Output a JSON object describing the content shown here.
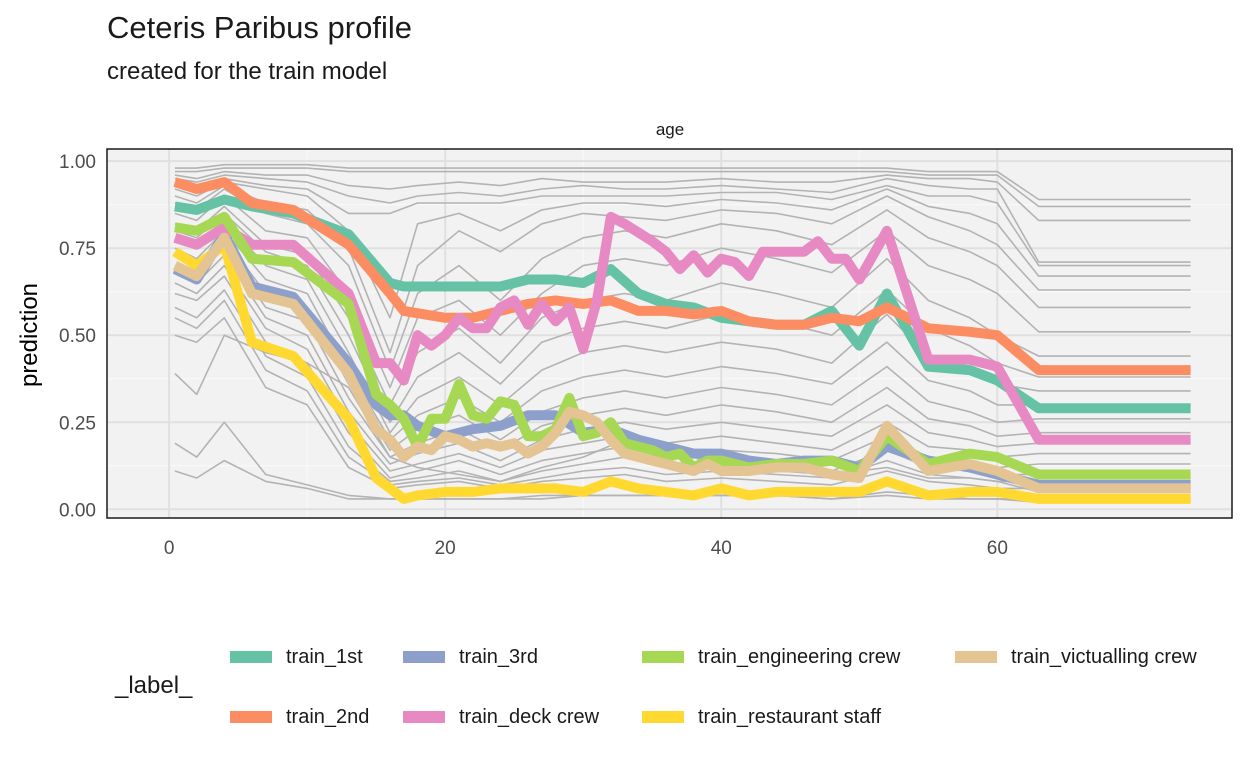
{
  "header": {
    "title": "Ceteris Paribus profile",
    "subtitle": "created for the train model"
  },
  "chart_data": {
    "type": "line",
    "title": "Ceteris Paribus profile",
    "subtitle": "created for the train model",
    "facet_label": "age",
    "xlabel": "",
    "ylabel": "prediction",
    "xlim": [
      -4.5,
      77
    ],
    "ylim": [
      -0.025,
      1.035
    ],
    "x_ticks": [
      0,
      20,
      40,
      60
    ],
    "y_ticks": [
      0.0,
      0.25,
      0.5,
      0.75,
      1.0
    ],
    "x_tick_labels": [
      "0",
      "20",
      "40",
      "60"
    ],
    "y_tick_labels": [
      "0.00",
      "0.25",
      "0.50",
      "0.75",
      "1.00"
    ],
    "grid": true,
    "legend_position": "bottom",
    "legend_title": "_label_",
    "series": [
      {
        "name": "train_1st",
        "color": "#66C2A5",
        "x": [
          0.42,
          2,
          4,
          6,
          9,
          13,
          16,
          17,
          20,
          22,
          24,
          26,
          28,
          30,
          32,
          34,
          36,
          38,
          40,
          42,
          44,
          46,
          48,
          50,
          52,
          55,
          58,
          60,
          63,
          74
        ],
        "y": [
          0.87,
          0.86,
          0.89,
          0.87,
          0.85,
          0.79,
          0.65,
          0.64,
          0.64,
          0.64,
          0.64,
          0.66,
          0.66,
          0.65,
          0.69,
          0.62,
          0.59,
          0.58,
          0.55,
          0.54,
          0.53,
          0.53,
          0.57,
          0.47,
          0.62,
          0.41,
          0.4,
          0.37,
          0.29,
          0.29
        ]
      },
      {
        "name": "train_2nd",
        "color": "#FC8D62",
        "x": [
          0.42,
          2,
          4,
          6,
          9,
          13,
          16,
          17,
          20,
          22,
          24,
          26,
          28,
          30,
          32,
          34,
          36,
          38,
          40,
          42,
          44,
          46,
          48,
          50,
          52,
          55,
          58,
          60,
          63,
          74
        ],
        "y": [
          0.94,
          0.92,
          0.94,
          0.88,
          0.86,
          0.76,
          0.62,
          0.57,
          0.55,
          0.55,
          0.57,
          0.59,
          0.6,
          0.59,
          0.6,
          0.57,
          0.57,
          0.56,
          0.57,
          0.54,
          0.53,
          0.53,
          0.55,
          0.54,
          0.58,
          0.52,
          0.51,
          0.5,
          0.4,
          0.4
        ]
      },
      {
        "name": "train_3rd",
        "color": "#8DA0CB",
        "x": [
          0.42,
          2,
          4,
          6,
          9,
          13,
          15,
          16,
          17,
          18,
          20,
          22,
          24,
          26,
          28,
          30,
          32,
          34,
          36,
          38,
          40,
          42,
          44,
          46,
          48,
          50,
          52,
          55,
          58,
          60,
          63,
          74
        ],
        "y": [
          0.69,
          0.66,
          0.79,
          0.64,
          0.61,
          0.42,
          0.3,
          0.27,
          0.27,
          0.24,
          0.21,
          0.23,
          0.24,
          0.27,
          0.27,
          0.22,
          0.23,
          0.2,
          0.18,
          0.16,
          0.16,
          0.14,
          0.13,
          0.14,
          0.14,
          0.12,
          0.18,
          0.14,
          0.12,
          0.1,
          0.07,
          0.07
        ]
      },
      {
        "name": "train_deck crew",
        "color": "#E78AC3",
        "x": [
          0.42,
          2,
          4,
          6,
          9,
          13,
          15,
          16,
          17,
          18,
          19,
          20,
          21,
          22,
          23,
          24,
          25,
          26,
          27,
          28,
          29,
          30,
          31,
          32,
          33,
          35,
          36,
          37,
          38,
          39,
          40,
          41,
          42,
          43,
          44,
          45,
          46,
          47,
          48,
          49,
          50,
          52,
          55,
          58,
          60,
          63,
          74
        ],
        "y": [
          0.78,
          0.76,
          0.81,
          0.76,
          0.76,
          0.62,
          0.42,
          0.42,
          0.37,
          0.5,
          0.47,
          0.5,
          0.55,
          0.52,
          0.52,
          0.58,
          0.6,
          0.53,
          0.59,
          0.54,
          0.58,
          0.46,
          0.6,
          0.84,
          0.82,
          0.77,
          0.74,
          0.69,
          0.73,
          0.68,
          0.72,
          0.71,
          0.67,
          0.74,
          0.74,
          0.74,
          0.74,
          0.77,
          0.72,
          0.72,
          0.66,
          0.8,
          0.43,
          0.43,
          0.41,
          0.2,
          0.2
        ]
      },
      {
        "name": "train_engineering crew",
        "color": "#A6D854",
        "x": [
          0.42,
          2,
          4,
          6,
          9,
          13,
          15,
          16,
          17,
          18,
          19,
          20,
          21,
          22,
          23,
          24,
          25,
          26,
          27,
          28,
          29,
          30,
          31,
          32,
          33,
          35,
          36,
          37,
          38,
          39,
          40,
          42,
          44,
          46,
          48,
          50,
          52,
          55,
          58,
          60,
          63,
          74
        ],
        "y": [
          0.81,
          0.8,
          0.84,
          0.72,
          0.71,
          0.59,
          0.33,
          0.3,
          0.26,
          0.18,
          0.26,
          0.26,
          0.36,
          0.27,
          0.26,
          0.31,
          0.3,
          0.21,
          0.21,
          0.23,
          0.32,
          0.21,
          0.22,
          0.25,
          0.19,
          0.17,
          0.15,
          0.16,
          0.12,
          0.14,
          0.14,
          0.12,
          0.13,
          0.13,
          0.14,
          0.11,
          0.21,
          0.13,
          0.16,
          0.15,
          0.1,
          0.1
        ]
      },
      {
        "name": "train_restaurant staff",
        "color": "#FFD92F",
        "x": [
          0.42,
          2,
          4,
          6,
          9,
          13,
          15,
          16,
          17,
          18,
          20,
          22,
          24,
          26,
          28,
          30,
          32,
          34,
          36,
          38,
          40,
          42,
          44,
          46,
          48,
          50,
          52,
          55,
          58,
          60,
          63,
          74
        ],
        "y": [
          0.74,
          0.7,
          0.76,
          0.48,
          0.44,
          0.26,
          0.09,
          0.06,
          0.03,
          0.04,
          0.05,
          0.05,
          0.06,
          0.06,
          0.06,
          0.05,
          0.08,
          0.06,
          0.05,
          0.04,
          0.06,
          0.04,
          0.05,
          0.05,
          0.05,
          0.05,
          0.08,
          0.04,
          0.05,
          0.05,
          0.03,
          0.03
        ]
      },
      {
        "name": "train_victualling crew",
        "color": "#E5C494",
        "x": [
          0.42,
          2,
          4,
          6,
          9,
          13,
          15,
          16,
          17,
          18,
          19,
          20,
          21,
          22,
          23,
          24,
          25,
          26,
          27,
          28,
          29,
          30,
          31,
          32,
          33,
          35,
          36,
          37,
          38,
          39,
          40,
          42,
          44,
          46,
          48,
          50,
          52,
          55,
          58,
          60,
          63,
          74
        ],
        "y": [
          0.7,
          0.67,
          0.78,
          0.62,
          0.59,
          0.39,
          0.23,
          0.2,
          0.15,
          0.18,
          0.17,
          0.21,
          0.2,
          0.18,
          0.19,
          0.18,
          0.19,
          0.16,
          0.18,
          0.22,
          0.28,
          0.27,
          0.25,
          0.2,
          0.16,
          0.14,
          0.13,
          0.12,
          0.11,
          0.13,
          0.11,
          0.11,
          0.12,
          0.12,
          0.1,
          0.09,
          0.24,
          0.11,
          0.13,
          0.11,
          0.06,
          0.06
        ]
      }
    ],
    "background_profiles": [
      [
        0.98,
        0.98,
        0.99,
        0.99,
        0.99,
        0.98,
        0.98,
        0.98,
        0.98,
        0.98,
        0.98,
        0.98,
        0.98,
        0.98,
        0.98,
        0.98,
        0.98,
        0.98,
        0.97,
        0.97,
        0.97,
        0.89,
        0.89
      ],
      [
        0.97,
        0.97,
        0.98,
        0.98,
        0.98,
        0.97,
        0.97,
        0.97,
        0.97,
        0.97,
        0.97,
        0.97,
        0.97,
        0.97,
        0.97,
        0.97,
        0.97,
        0.97,
        0.96,
        0.96,
        0.96,
        0.87,
        0.87
      ],
      [
        0.96,
        0.95,
        0.97,
        0.96,
        0.96,
        0.93,
        0.92,
        0.93,
        0.94,
        0.93,
        0.95,
        0.94,
        0.94,
        0.94,
        0.95,
        0.94,
        0.94,
        0.96,
        0.95,
        0.95,
        0.94,
        0.83,
        0.83
      ],
      [
        0.95,
        0.94,
        0.96,
        0.95,
        0.94,
        0.9,
        0.88,
        0.9,
        0.91,
        0.9,
        0.92,
        0.93,
        0.92,
        0.92,
        0.93,
        0.92,
        0.91,
        0.95,
        0.93,
        0.92,
        0.92,
        0.71,
        0.71
      ],
      [
        0.93,
        0.92,
        0.95,
        0.93,
        0.92,
        0.85,
        0.85,
        0.88,
        0.88,
        0.88,
        0.9,
        0.9,
        0.9,
        0.9,
        0.91,
        0.91,
        0.89,
        0.93,
        0.9,
        0.9,
        0.88,
        0.7,
        0.7
      ],
      [
        0.92,
        0.9,
        0.94,
        0.92,
        0.9,
        0.8,
        0.55,
        0.82,
        0.85,
        0.8,
        0.86,
        0.88,
        0.88,
        0.87,
        0.89,
        0.88,
        0.86,
        0.92,
        0.87,
        0.85,
        0.82,
        0.67,
        0.67
      ],
      [
        0.9,
        0.88,
        0.93,
        0.88,
        0.86,
        0.75,
        0.45,
        0.7,
        0.8,
        0.74,
        0.82,
        0.85,
        0.84,
        0.83,
        0.86,
        0.85,
        0.82,
        0.9,
        0.84,
        0.8,
        0.76,
        0.63,
        0.63
      ],
      [
        0.88,
        0.86,
        0.92,
        0.85,
        0.82,
        0.7,
        0.4,
        0.62,
        0.7,
        0.6,
        0.72,
        0.78,
        0.8,
        0.78,
        0.82,
        0.8,
        0.76,
        0.86,
        0.78,
        0.74,
        0.7,
        0.58,
        0.58
      ],
      [
        0.85,
        0.83,
        0.9,
        0.8,
        0.78,
        0.62,
        0.35,
        0.55,
        0.6,
        0.5,
        0.62,
        0.7,
        0.72,
        0.7,
        0.75,
        0.72,
        0.68,
        0.8,
        0.7,
        0.66,
        0.62,
        0.51,
        0.51
      ],
      [
        0.82,
        0.8,
        0.87,
        0.76,
        0.73,
        0.55,
        0.3,
        0.45,
        0.52,
        0.42,
        0.55,
        0.6,
        0.62,
        0.6,
        0.65,
        0.62,
        0.58,
        0.72,
        0.6,
        0.55,
        0.5,
        0.44,
        0.44
      ],
      [
        0.8,
        0.78,
        0.85,
        0.74,
        0.7,
        0.5,
        0.25,
        0.38,
        0.45,
        0.36,
        0.48,
        0.52,
        0.54,
        0.52,
        0.56,
        0.54,
        0.5,
        0.63,
        0.52,
        0.47,
        0.42,
        0.38,
        0.38
      ],
      [
        0.78,
        0.75,
        0.83,
        0.7,
        0.66,
        0.45,
        0.22,
        0.32,
        0.38,
        0.3,
        0.4,
        0.45,
        0.47,
        0.45,
        0.48,
        0.46,
        0.42,
        0.56,
        0.44,
        0.4,
        0.36,
        0.34,
        0.34
      ],
      [
        0.75,
        0.72,
        0.8,
        0.66,
        0.62,
        0.4,
        0.2,
        0.27,
        0.32,
        0.25,
        0.34,
        0.38,
        0.4,
        0.38,
        0.41,
        0.39,
        0.36,
        0.48,
        0.37,
        0.34,
        0.3,
        0.3,
        0.3
      ],
      [
        0.73,
        0.7,
        0.78,
        0.62,
        0.58,
        0.36,
        0.17,
        0.23,
        0.27,
        0.2,
        0.28,
        0.32,
        0.34,
        0.32,
        0.35,
        0.33,
        0.3,
        0.41,
        0.31,
        0.28,
        0.25,
        0.26,
        0.26
      ],
      [
        0.7,
        0.67,
        0.75,
        0.58,
        0.54,
        0.32,
        0.15,
        0.19,
        0.23,
        0.17,
        0.24,
        0.27,
        0.29,
        0.27,
        0.3,
        0.28,
        0.25,
        0.35,
        0.26,
        0.24,
        0.21,
        0.22,
        0.22
      ],
      [
        0.68,
        0.65,
        0.73,
        0.55,
        0.5,
        0.28,
        0.13,
        0.16,
        0.19,
        0.14,
        0.2,
        0.23,
        0.25,
        0.23,
        0.25,
        0.23,
        0.21,
        0.3,
        0.22,
        0.2,
        0.18,
        0.19,
        0.19
      ],
      [
        0.65,
        0.62,
        0.7,
        0.52,
        0.46,
        0.25,
        0.11,
        0.13,
        0.16,
        0.12,
        0.17,
        0.19,
        0.21,
        0.19,
        0.21,
        0.19,
        0.17,
        0.25,
        0.18,
        0.17,
        0.15,
        0.16,
        0.16
      ],
      [
        0.62,
        0.6,
        0.67,
        0.48,
        0.42,
        0.22,
        0.09,
        0.11,
        0.14,
        0.1,
        0.14,
        0.16,
        0.18,
        0.16,
        0.17,
        0.16,
        0.14,
        0.21,
        0.15,
        0.14,
        0.12,
        0.13,
        0.13
      ],
      [
        0.58,
        0.55,
        0.63,
        0.44,
        0.38,
        0.18,
        0.08,
        0.09,
        0.11,
        0.08,
        0.11,
        0.13,
        0.15,
        0.13,
        0.14,
        0.13,
        0.11,
        0.17,
        0.12,
        0.11,
        0.1,
        0.1,
        0.1
      ],
      [
        0.55,
        0.52,
        0.6,
        0.4,
        0.34,
        0.15,
        0.07,
        0.08,
        0.09,
        0.07,
        0.09,
        0.11,
        0.12,
        0.1,
        0.11,
        0.1,
        0.09,
        0.14,
        0.1,
        0.09,
        0.08,
        0.08,
        0.08
      ],
      [
        0.5,
        0.48,
        0.55,
        0.35,
        0.3,
        0.12,
        0.06,
        0.07,
        0.08,
        0.06,
        0.08,
        0.09,
        0.1,
        0.08,
        0.09,
        0.08,
        0.07,
        0.11,
        0.08,
        0.07,
        0.06,
        0.06,
        0.06
      ],
      [
        0.39,
        0.33,
        0.5,
        0.45,
        0.42,
        0.35,
        0.15,
        0.12,
        0.1,
        0.08,
        0.12,
        0.15,
        0.2,
        0.18,
        0.12,
        0.11,
        0.1,
        0.12,
        0.09,
        0.09,
        0.08,
        0.05,
        0.05
      ],
      [
        0.19,
        0.15,
        0.25,
        0.1,
        0.07,
        0.04,
        0.03,
        0.03,
        0.03,
        0.03,
        0.04,
        0.04,
        0.04,
        0.04,
        0.04,
        0.04,
        0.03,
        0.05,
        0.04,
        0.03,
        0.03,
        0.03,
        0.03
      ],
      [
        0.11,
        0.09,
        0.14,
        0.08,
        0.06,
        0.03,
        0.03,
        0.03,
        0.03,
        0.03,
        0.03,
        0.04,
        0.04,
        0.04,
        0.04,
        0.04,
        0.03,
        0.04,
        0.03,
        0.03,
        0.03,
        0.02,
        0.02
      ]
    ],
    "background_x": [
      0.42,
      2,
      4,
      7,
      10,
      13,
      16,
      18,
      21,
      24,
      27,
      30,
      33,
      36,
      40,
      44,
      48,
      52,
      55,
      58,
      60,
      63,
      74
    ],
    "background_color": "#B3B3B3"
  }
}
